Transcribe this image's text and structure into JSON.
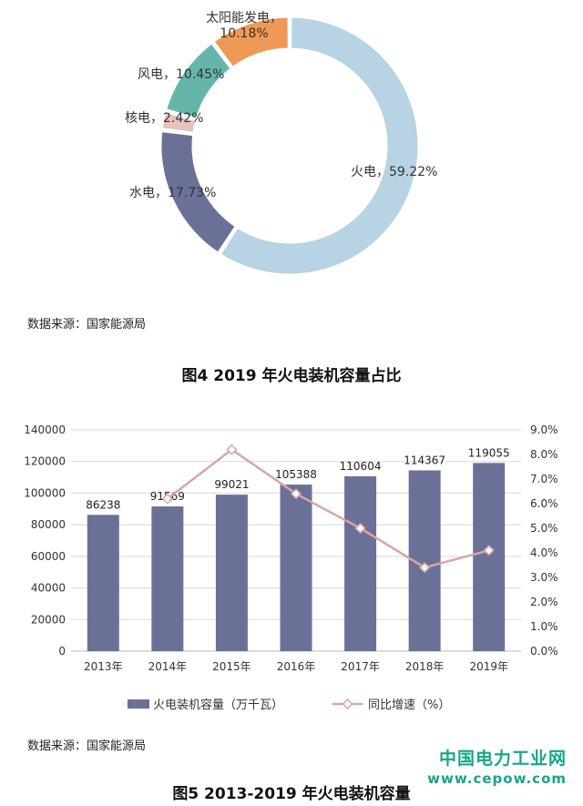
{
  "figure4": {
    "source": "数据来源：国家能源局",
    "title": "图4  2019 年火电装机容量占比"
  },
  "figure5": {
    "source": "数据来源：国家能源局",
    "title": "图5  2013-2019 年火电装机容量"
  },
  "watermark": {
    "name": "中国电力工业网",
    "url": "www.cepow.com"
  },
  "colors": {
    "thermal": "#b7d3e4",
    "hydro": "#6b7196",
    "nuclear": "#e9c2bd",
    "wind": "#66b5aa",
    "solar": "#ee9a56",
    "bar": "#6b7196",
    "line": "#d8a6a6",
    "watermark": "#17a589"
  },
  "chart_data": [
    {
      "type": "pie",
      "title": "图4  2019 年火电装机容量占比",
      "slices": [
        {
          "name": "火电",
          "value": 59.22,
          "label": "火电，59.22%",
          "color": "#b7d3e4"
        },
        {
          "name": "水电",
          "value": 17.73,
          "label": "水电，17.73%",
          "color": "#6b7196"
        },
        {
          "name": "核电",
          "value": 2.42,
          "label": "核电，2.42%",
          "color": "#e9c2bd"
        },
        {
          "name": "风电",
          "value": 10.45,
          "label": "风电，10.45%",
          "color": "#66b5aa"
        },
        {
          "name": "太阳能发电",
          "value": 10.18,
          "label": "太阳能发电，10.18%",
          "color": "#ee9a56"
        }
      ]
    },
    {
      "type": "bar",
      "title": "图5  2013-2019 年火电装机容量",
      "categories": [
        "2013年",
        "2014年",
        "2015年",
        "2016年",
        "2017年",
        "2018年",
        "2019年"
      ],
      "series": [
        {
          "name": "火电装机容量（万千瓦）",
          "type": "bar",
          "axis": "left",
          "values": [
            86238,
            91569,
            99021,
            105388,
            110604,
            114367,
            119055
          ]
        },
        {
          "name": "同比增速（%）",
          "type": "line",
          "axis": "right",
          "values": [
            null,
            6.2,
            8.2,
            6.4,
            5.0,
            3.4,
            4.1
          ]
        }
      ],
      "y_left": {
        "range": [
          0,
          140000
        ],
        "ticks": [
          "0",
          "20000",
          "40000",
          "60000",
          "80000",
          "100000",
          "120000",
          "140000"
        ]
      },
      "y_right": {
        "range": [
          0,
          9
        ],
        "ticks": [
          "0.0%",
          "1.0%",
          "2.0%",
          "3.0%",
          "4.0%",
          "5.0%",
          "6.0%",
          "7.0%",
          "8.0%",
          "9.0%"
        ]
      },
      "grid": true,
      "legend": "bottom"
    }
  ]
}
